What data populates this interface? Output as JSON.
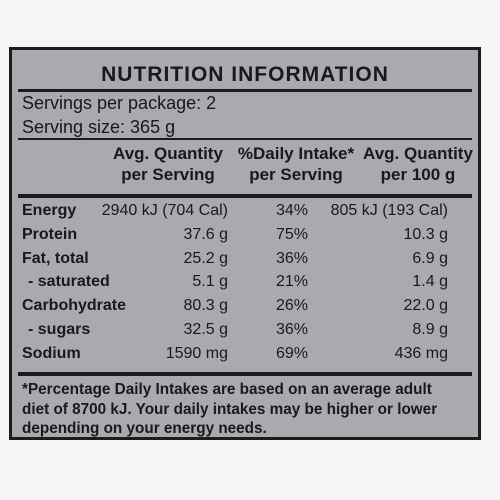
{
  "title": "NUTRITION INFORMATION",
  "servings": {
    "per_package": "Servings per package: 2",
    "serving_size": "Serving size: 365 g"
  },
  "columns": {
    "c1": [
      "Avg. Quantity",
      "per Serving"
    ],
    "c2": [
      "%Daily Intake*",
      "per Serving"
    ],
    "c3": [
      "Avg. Quantity",
      "per 100 g"
    ]
  },
  "rows": [
    {
      "label": "Energy",
      "per_serving": "2940 kJ (704 Cal)",
      "daily_intake": "34%",
      "per_100g": "805 kJ (193 Cal)",
      "indent": false
    },
    {
      "label": "Protein",
      "per_serving": "37.6 g",
      "daily_intake": "75%",
      "per_100g": "10.3 g",
      "indent": false
    },
    {
      "label": "Fat, total",
      "per_serving": "25.2 g",
      "daily_intake": "36%",
      "per_100g": "6.9 g",
      "indent": false
    },
    {
      "label": "- saturated",
      "per_serving": "5.1 g",
      "daily_intake": "21%",
      "per_100g": "1.4 g",
      "indent": true
    },
    {
      "label": "Carbohydrate",
      "per_serving": "80.3 g",
      "daily_intake": "26%",
      "per_100g": "22.0 g",
      "indent": false
    },
    {
      "label": "- sugars",
      "per_serving": "32.5 g",
      "daily_intake": "36%",
      "per_100g": "8.9 g",
      "indent": true
    },
    {
      "label": "Sodium",
      "per_serving": "1590 mg",
      "daily_intake": "69%",
      "per_100g": "436 mg",
      "indent": false
    }
  ],
  "footnote": [
    "*Percentage Daily Intakes are based on an average adult",
    "diet of 8700 kJ. Your daily intakes may be higher or lower",
    "depending on your energy needs."
  ],
  "colors": {
    "panel_background": "#a9aaad",
    "ink": "#19191b",
    "page_background": "#f6f6f6"
  }
}
